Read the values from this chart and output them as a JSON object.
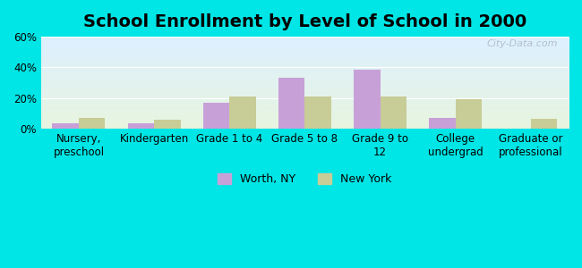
{
  "title": "School Enrollment by Level of School in 2000",
  "categories": [
    "Nursery,\npreschool",
    "Kindergarten",
    "Grade 1 to 4",
    "Grade 5 to 8",
    "Grade 9 to\n12",
    "College\nundergrad",
    "Graduate or\nprofessional"
  ],
  "worth_ny": [
    3.5,
    3.5,
    17.0,
    33.0,
    38.5,
    7.0,
    0.0
  ],
  "new_york": [
    7.0,
    6.0,
    21.0,
    21.0,
    21.0,
    19.0,
    6.5
  ],
  "worth_color": "#c8a0d8",
  "ny_color": "#c8cc96",
  "background_outer": "#00e5e5",
  "background_inner_top": "#ddf0ff",
  "background_inner_bottom": "#e8f5e0",
  "ylim": [
    0,
    60
  ],
  "yticks": [
    0,
    20,
    40,
    60
  ],
  "ytick_labels": [
    "0%",
    "20%",
    "40%",
    "60%"
  ],
  "legend_worth": "Worth, NY",
  "legend_ny": "New York",
  "bar_width": 0.35,
  "watermark": "City-Data.com",
  "title_fontsize": 14,
  "tick_fontsize": 8.5,
  "legend_fontsize": 9
}
